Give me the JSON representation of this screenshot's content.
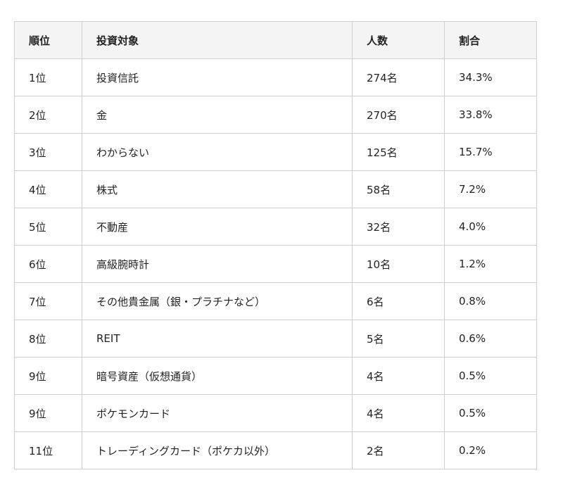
{
  "table": {
    "headers": [
      "順位",
      "投資対象",
      "人数",
      "割合"
    ],
    "rows": [
      [
        "1位",
        "投資信託",
        "274名",
        "34.3%"
      ],
      [
        "2位",
        "金",
        "270名",
        "33.8%"
      ],
      [
        "3位",
        "わからない",
        "125名",
        "15.7%"
      ],
      [
        "4位",
        "株式",
        "58名",
        "7.2%"
      ],
      [
        "5位",
        "不動産",
        "32名",
        "4.0%"
      ],
      [
        "6位",
        "高級腕時計",
        "10名",
        "1.2%"
      ],
      [
        "7位",
        "その他貴金属（銀・プラチナなど）",
        "6名",
        "0.8%"
      ],
      [
        "8位",
        "REIT",
        "5名",
        "0.6%"
      ],
      [
        "9位",
        "暗号資産（仮想通貨）",
        "4名",
        "0.5%"
      ],
      [
        "9位",
        "ポケモンカード",
        "4名",
        "0.5%"
      ],
      [
        "11位",
        "トレーディングカード（ポケカ以外）",
        "2名",
        "0.2%"
      ]
    ]
  }
}
